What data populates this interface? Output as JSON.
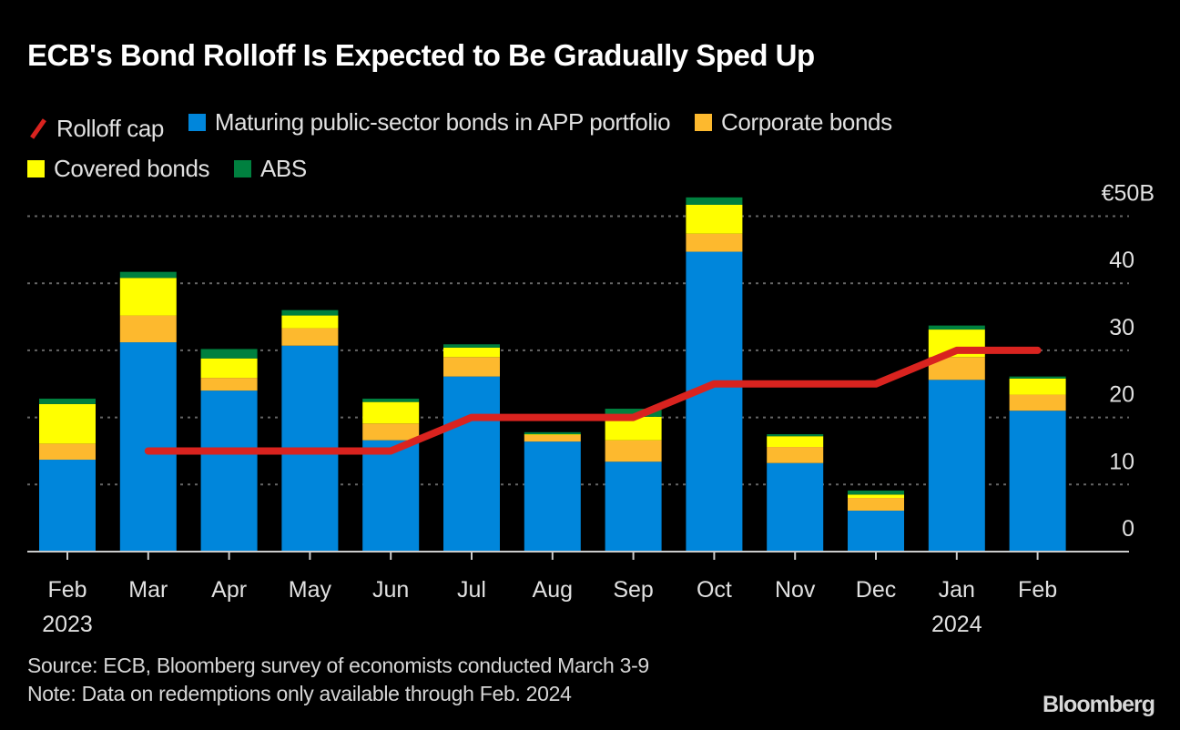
{
  "chart_data": {
    "type": "bar",
    "stacked": true,
    "title": "ECB's Bond Rolloff Is Expected to Be Gradually Sped Up",
    "categories": [
      "Feb",
      "Mar",
      "Apr",
      "May",
      "Jun",
      "Jul",
      "Aug",
      "Sep",
      "Oct",
      "Nov",
      "Dec",
      "Jan",
      "Feb"
    ],
    "category_years": [
      "2023",
      "",
      "",
      "",
      "",
      "",
      "",
      "",
      "",
      "",
      "",
      "2024",
      ""
    ],
    "series": [
      {
        "name": "Maturing public-sector bonds in APP portfolio",
        "color": "#0086db",
        "values": [
          13.7,
          31.2,
          24.0,
          30.7,
          16.6,
          26.1,
          16.4,
          13.4,
          44.7,
          13.2,
          6.1,
          25.6,
          21.0
        ]
      },
      {
        "name": "Corporate bonds",
        "color": "#fdb92e",
        "values": [
          2.4,
          4.0,
          1.9,
          2.6,
          2.5,
          2.9,
          1.0,
          3.2,
          2.7,
          2.4,
          1.9,
          3.4,
          2.4
        ]
      },
      {
        "name": "Covered bonds",
        "color": "#ffff00",
        "values": [
          5.9,
          5.6,
          2.9,
          1.9,
          3.2,
          1.4,
          0.1,
          3.5,
          4.3,
          1.6,
          0.5,
          4.1,
          2.4
        ]
      },
      {
        "name": "ABS",
        "color": "#00803f",
        "values": [
          0.8,
          0.9,
          1.4,
          0.8,
          0.5,
          0.5,
          0.3,
          1.2,
          1.1,
          0.3,
          0.6,
          0.6,
          0.3
        ]
      }
    ],
    "line_series": {
      "name": "Rolloff cap",
      "color": "#d9231f",
      "values": [
        null,
        15,
        15,
        15,
        15,
        20,
        20,
        20,
        25,
        25,
        25,
        30,
        30
      ]
    },
    "ylim": [
      0,
      50
    ],
    "yticks": [
      0,
      10,
      20,
      30,
      40,
      50
    ],
    "ytick_labels": [
      "0",
      "10",
      "20",
      "30",
      "40",
      "€50B"
    ],
    "grid": true,
    "legend_position": "top-left",
    "xlabel": "",
    "ylabel": ""
  },
  "legend": {
    "rolloff": "Rolloff cap",
    "public": "Maturing public-sector bonds in APP portfolio",
    "corporate": "Corporate bonds",
    "covered": "Covered bonds",
    "abs": "ABS"
  },
  "footer": {
    "source": "Source: ECB, Bloomberg survey of economists conducted March 3-9",
    "note": "Note: Data on redemptions only available through Feb. 2024"
  },
  "logo": "Bloomberg"
}
